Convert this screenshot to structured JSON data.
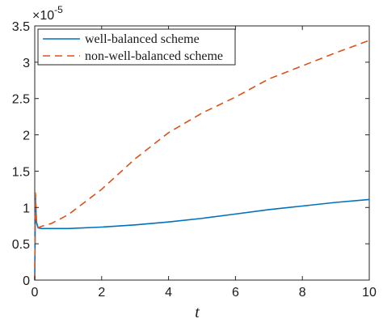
{
  "chart_data": {
    "type": "line",
    "title": "",
    "xlabel": "t",
    "ylabel": "",
    "y_multiplier": "×10",
    "y_multiplier_exp": "-5",
    "xlim": [
      0,
      10
    ],
    "ylim": [
      0,
      3.5
    ],
    "x_ticks": [
      0,
      2,
      4,
      6,
      8,
      10
    ],
    "y_ticks": [
      0,
      0.5,
      1,
      1.5,
      2,
      2.5,
      3,
      3.5
    ],
    "x_tick_labels": [
      "0",
      "2",
      "4",
      "6",
      "8",
      "10"
    ],
    "y_tick_labels": [
      "0",
      "0.5",
      "1",
      "1.5",
      "2",
      "2.5",
      "3",
      "3.5"
    ],
    "grid": false,
    "legend_position": "top-left",
    "series": [
      {
        "name": "well-balanced scheme",
        "color": "#0072BD",
        "style": "solid",
        "points": [
          [
            0,
            0
          ],
          [
            0.02,
            1.15
          ],
          [
            0.05,
            0.8
          ],
          [
            0.1,
            0.72
          ],
          [
            0.2,
            0.71
          ],
          [
            0.5,
            0.71
          ],
          [
            1,
            0.71
          ],
          [
            2,
            0.73
          ],
          [
            3,
            0.76
          ],
          [
            4,
            0.8
          ],
          [
            5,
            0.85
          ],
          [
            6,
            0.91
          ],
          [
            7,
            0.97
          ],
          [
            8,
            1.02
          ],
          [
            9,
            1.07
          ],
          [
            10,
            1.11
          ]
        ]
      },
      {
        "name": "non-well-balanced scheme",
        "color": "#D95319",
        "style": "dashed",
        "points": [
          [
            0,
            0
          ],
          [
            0.02,
            1.2
          ],
          [
            0.05,
            0.82
          ],
          [
            0.1,
            0.72
          ],
          [
            0.2,
            0.74
          ],
          [
            0.5,
            0.78
          ],
          [
            1,
            0.9
          ],
          [
            2,
            1.25
          ],
          [
            3,
            1.67
          ],
          [
            4,
            2.03
          ],
          [
            5,
            2.3
          ],
          [
            6,
            2.52
          ],
          [
            7,
            2.77
          ],
          [
            8,
            2.95
          ],
          [
            9,
            3.13
          ],
          [
            10,
            3.3
          ]
        ]
      }
    ]
  }
}
